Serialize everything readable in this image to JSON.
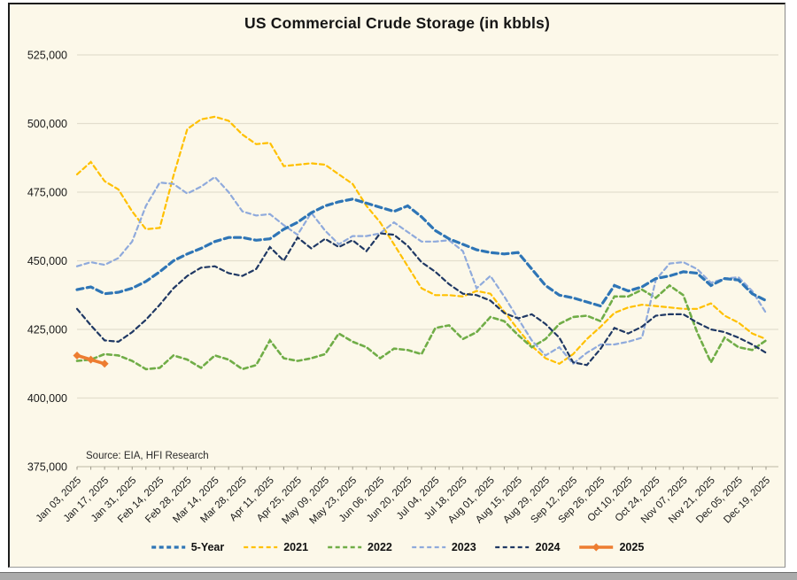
{
  "title": "US Commercial Crude Storage (in kbbls)",
  "source_note": "Source: EIA, HFI Research",
  "colors": {
    "canvas_background": "#FCF8E9",
    "gridline": "#E3DECD",
    "axis_line": "#C9C5B3",
    "tick": "#9C988A",
    "text": "#1A1A1A"
  },
  "chart_data": {
    "type": "line",
    "title": "US Commercial Crude Storage (in kbbls)",
    "xlabel": "",
    "ylabel": "",
    "ylim": [
      375000,
      525000
    ],
    "ytick_step": 25000,
    "y_tick_labels": [
      "375,000",
      "400,000",
      "425,000",
      "450,000",
      "475,000",
      "500,000",
      "525,000"
    ],
    "grid": "horizontal",
    "legend_position": "bottom-center",
    "weeks_total": 51,
    "x_tick_labels": [
      "Jan 03, 2025",
      "Jan 17, 2025",
      "Jan 31, 2025",
      "Feb 14, 2025",
      "Feb 28, 2025",
      "Mar 14, 2025",
      "Mar 28, 2025",
      "Apr 11, 2025",
      "Apr 25, 2025",
      "May 09, 2025",
      "May 23, 2025",
      "Jun 06, 2025",
      "Jun 20, 2025",
      "Jul 04, 2025",
      "Jul 18, 2025",
      "Aug 01, 2025",
      "Aug 15, 2025",
      "Aug 29, 2025",
      "Sep 12, 2025",
      "Sep 26, 2025",
      "Oct 10, 2025",
      "Oct 24, 2025",
      "Nov 07, 2025",
      "Nov 21, 2025",
      "Dec 05, 2025",
      "Dec 19, 2025"
    ],
    "series": [
      {
        "name": "5-Year",
        "color": "#2E75B6",
        "style": "dashed",
        "width": 3.2,
        "values": [
          439500,
          440500,
          438000,
          438500,
          440000,
          442500,
          446000,
          450000,
          452500,
          454500,
          457000,
          458500,
          458500,
          457500,
          458000,
          461500,
          464000,
          467500,
          470000,
          471500,
          472500,
          471000,
          469500,
          468000,
          470000,
          466000,
          461000,
          458000,
          456000,
          454000,
          453000,
          452500,
          453000,
          447000,
          441000,
          437500,
          436500,
          435000,
          433500,
          441000,
          439000,
          440500,
          443500,
          444500,
          446000,
          445500,
          441000,
          443500,
          443000,
          438000,
          435500
        ]
      },
      {
        "name": "2021",
        "color": "#FFC000",
        "style": "dashed",
        "width": 2.2,
        "values": [
          481500,
          486000,
          479000,
          476000,
          468000,
          461500,
          462000,
          481000,
          498000,
          501500,
          502500,
          501000,
          496000,
          492500,
          493000,
          484500,
          485000,
          485500,
          485000,
          481500,
          478000,
          470000,
          464000,
          456000,
          448000,
          440000,
          437500,
          437500,
          437000,
          439000,
          438000,
          431500,
          425000,
          419000,
          414500,
          412500,
          416000,
          421500,
          426000,
          431000,
          433000,
          434000,
          433500,
          433000,
          432500,
          432500,
          434500,
          430000,
          427500,
          423500,
          421500
        ]
      },
      {
        "name": "2022",
        "color": "#70AD47",
        "style": "dashed",
        "width": 2.6,
        "values": [
          413500,
          414000,
          416000,
          415500,
          413500,
          410500,
          411000,
          415500,
          414000,
          411000,
          415500,
          414000,
          410500,
          412000,
          421000,
          414500,
          413500,
          414500,
          416000,
          423500,
          420500,
          418500,
          414500,
          418000,
          417500,
          416000,
          425500,
          426500,
          421500,
          424000,
          429500,
          428000,
          423000,
          418500,
          421500,
          427000,
          429500,
          430000,
          428000,
          437000,
          437000,
          439500,
          436500,
          441000,
          437500,
          424000,
          413000,
          422000,
          418500,
          417500,
          421000
        ]
      },
      {
        "name": "2023",
        "color": "#8FAADC",
        "style": "dashed",
        "width": 2.2,
        "values": [
          448000,
          449500,
          448500,
          451000,
          457000,
          470000,
          478500,
          478000,
          474500,
          477000,
          480500,
          475000,
          468000,
          466500,
          467000,
          463000,
          459500,
          467500,
          461000,
          456000,
          459000,
          459000,
          460000,
          464000,
          460500,
          457000,
          457000,
          457500,
          453500,
          440000,
          444500,
          437000,
          429000,
          421000,
          415500,
          418500,
          412500,
          416500,
          419500,
          419500,
          420500,
          422000,
          443000,
          449000,
          449500,
          447000,
          442000,
          443500,
          444000,
          439000,
          431000
        ]
      },
      {
        "name": "2024",
        "color": "#1F3864",
        "style": "dashed",
        "width": 2.2,
        "values": [
          432500,
          426500,
          421000,
          420500,
          424000,
          428500,
          434000,
          440000,
          444500,
          447500,
          448000,
          445500,
          444500,
          447000,
          455000,
          450000,
          458500,
          454500,
          458000,
          455000,
          457500,
          453500,
          460000,
          459500,
          455500,
          449500,
          446000,
          441500,
          438000,
          437500,
          435500,
          431000,
          429000,
          430500,
          427000,
          422000,
          413000,
          412000,
          418000,
          425500,
          423500,
          426000,
          430000,
          430500,
          430500,
          427500,
          425000,
          424000,
          422000,
          419500,
          416500
        ]
      },
      {
        "name": "2025",
        "color": "#ED7D31",
        "style": "solid-diamond",
        "width": 3.6,
        "values": [
          415500,
          414000,
          412500
        ]
      }
    ]
  }
}
